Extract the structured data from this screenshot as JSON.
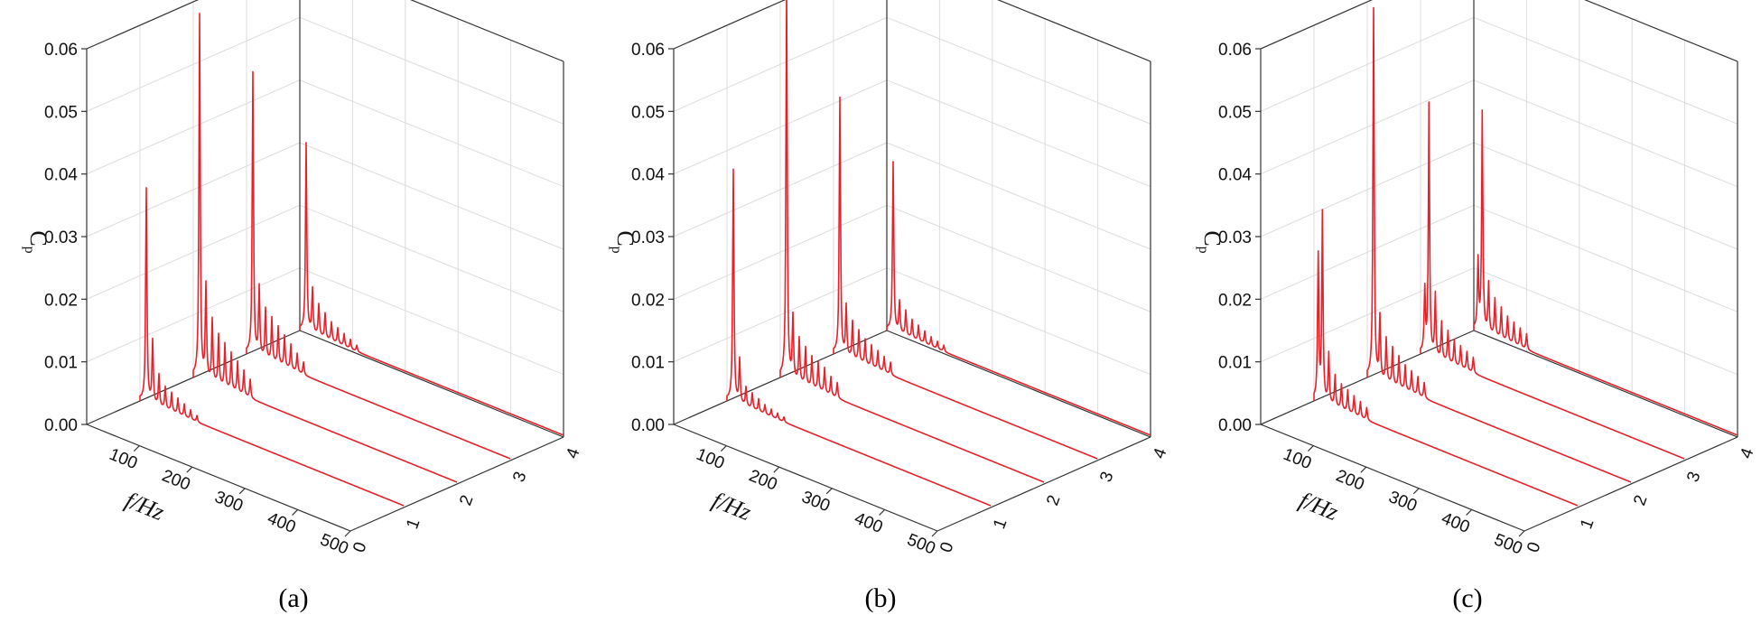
{
  "chart_data": [
    {
      "type": "line",
      "caption": "(a)",
      "zlabel": "C",
      "zlabel_sub": "p",
      "xlabel": "f/Hz",
      "xticks": [
        "100",
        "200",
        "300",
        "400",
        "500"
      ],
      "yticks": [
        "0",
        "1",
        "2",
        "3",
        "4"
      ],
      "zticks": [
        "0.00",
        "0.01",
        "0.02",
        "0.03",
        "0.04",
        "0.05",
        "0.06"
      ],
      "xlim": [
        0,
        500
      ],
      "ylim": [
        0,
        4
      ],
      "zlim": [
        0,
        0.06
      ],
      "series": [
        {
          "y": 1,
          "peaks": [
            [
              12,
              0.034
            ],
            [
              24,
              0.01
            ],
            [
              36,
              0.005
            ],
            [
              48,
              0.0035
            ],
            [
              60,
              0.003
            ],
            [
              72,
              0.0025
            ],
            [
              84,
              0.002
            ],
            [
              96,
              0.0015
            ],
            [
              108,
              0.001
            ]
          ]
        },
        {
          "y": 2,
          "peaks": [
            [
              12,
              0.058
            ],
            [
              24,
              0.015
            ],
            [
              36,
              0.01
            ],
            [
              48,
              0.008
            ],
            [
              60,
              0.007
            ],
            [
              72,
              0.006
            ],
            [
              84,
              0.005
            ],
            [
              96,
              0.004
            ],
            [
              108,
              0.003
            ]
          ]
        },
        {
          "y": 3,
          "peaks": [
            [
              12,
              0.045
            ],
            [
              24,
              0.011
            ],
            [
              36,
              0.008
            ],
            [
              48,
              0.007
            ],
            [
              60,
              0.006
            ],
            [
              72,
              0.005
            ],
            [
              84,
              0.004
            ],
            [
              96,
              0.003
            ],
            [
              108,
              0.002
            ]
          ]
        },
        {
          "y": 4,
          "peaks": [
            [
              12,
              0.03
            ],
            [
              24,
              0.007
            ],
            [
              36,
              0.005
            ],
            [
              48,
              0.004
            ],
            [
              60,
              0.003
            ],
            [
              72,
              0.0025
            ],
            [
              84,
              0.002
            ],
            [
              96,
              0.0015
            ],
            [
              108,
              0.001
            ]
          ]
        }
      ]
    },
    {
      "type": "line",
      "caption": "(b)",
      "zlabel": "C",
      "zlabel_sub": "p",
      "xlabel": "f/Hz",
      "xticks": [
        "100",
        "200",
        "300",
        "400",
        "500"
      ],
      "yticks": [
        "0",
        "1",
        "2",
        "3",
        "4"
      ],
      "zticks": [
        "0.00",
        "0.01",
        "0.02",
        "0.03",
        "0.04",
        "0.05",
        "0.06"
      ],
      "xlim": [
        0,
        500
      ],
      "ylim": [
        0,
        4
      ],
      "zlim": [
        0,
        0.06
      ],
      "series": [
        {
          "y": 1,
          "peaks": [
            [
              12,
              0.037
            ],
            [
              24,
              0.007
            ],
            [
              36,
              0.003
            ],
            [
              48,
              0.0025
            ],
            [
              60,
              0.002
            ],
            [
              72,
              0.0015
            ],
            [
              84,
              0.0012
            ],
            [
              96,
              0.001
            ],
            [
              108,
              0.0008
            ]
          ]
        },
        {
          "y": 2,
          "peaks": [
            [
              12,
              0.063
            ],
            [
              24,
              0.01
            ],
            [
              36,
              0.007
            ],
            [
              48,
              0.006
            ],
            [
              60,
              0.005
            ],
            [
              72,
              0.0045
            ],
            [
              84,
              0.004
            ],
            [
              96,
              0.003
            ],
            [
              108,
              0.0025
            ]
          ]
        },
        {
          "y": 3,
          "peaks": [
            [
              12,
              0.041
            ],
            [
              24,
              0.008
            ],
            [
              36,
              0.006
            ],
            [
              48,
              0.005
            ],
            [
              60,
              0.004
            ],
            [
              72,
              0.0035
            ],
            [
              84,
              0.003
            ],
            [
              96,
              0.0025
            ],
            [
              108,
              0.002
            ]
          ]
        },
        {
          "y": 4,
          "peaks": [
            [
              12,
              0.027
            ],
            [
              24,
              0.005
            ],
            [
              36,
              0.004
            ],
            [
              48,
              0.003
            ],
            [
              60,
              0.0025
            ],
            [
              72,
              0.002
            ],
            [
              84,
              0.0015
            ],
            [
              96,
              0.0012
            ],
            [
              108,
              0.001
            ]
          ]
        }
      ]
    },
    {
      "type": "line",
      "caption": "(c)",
      "zlabel": "C",
      "zlabel_sub": "p",
      "xlabel": "f/Hz",
      "xticks": [
        "100",
        "200",
        "300",
        "400",
        "500"
      ],
      "yticks": [
        "0",
        "1",
        "2",
        "3",
        "4"
      ],
      "zticks": [
        "0.00",
        "0.01",
        "0.02",
        "0.03",
        "0.04",
        "0.05",
        "0.06"
      ],
      "xlim": [
        0,
        500
      ],
      "ylim": [
        0,
        4
      ],
      "zlim": [
        0,
        0.06
      ],
      "series": [
        {
          "y": 1,
          "peaks": [
            [
              8,
              0.023
            ],
            [
              16,
              0.03
            ],
            [
              28,
              0.008
            ],
            [
              40,
              0.005
            ],
            [
              52,
              0.004
            ],
            [
              64,
              0.0035
            ],
            [
              76,
              0.003
            ],
            [
              88,
              0.0025
            ],
            [
              100,
              0.002
            ]
          ]
        },
        {
          "y": 2,
          "peaks": [
            [
              12,
              0.059
            ],
            [
              24,
              0.01
            ],
            [
              36,
              0.007
            ],
            [
              48,
              0.006
            ],
            [
              60,
              0.005
            ],
            [
              72,
              0.004
            ],
            [
              84,
              0.0035
            ],
            [
              96,
              0.003
            ],
            [
              108,
              0.0025
            ]
          ]
        },
        {
          "y": 3,
          "peaks": [
            [
              8,
              0.01
            ],
            [
              16,
              0.04
            ],
            [
              28,
              0.01
            ],
            [
              40,
              0.006
            ],
            [
              52,
              0.005
            ],
            [
              64,
              0.004
            ],
            [
              76,
              0.0035
            ],
            [
              88,
              0.003
            ],
            [
              100,
              0.0025
            ]
          ]
        },
        {
          "y": 4,
          "peaks": [
            [
              8,
              0.011
            ],
            [
              16,
              0.035
            ],
            [
              28,
              0.008
            ],
            [
              40,
              0.006
            ],
            [
              52,
              0.005
            ],
            [
              64,
              0.004
            ],
            [
              76,
              0.0035
            ],
            [
              88,
              0.003
            ],
            [
              100,
              0.0025
            ]
          ]
        }
      ]
    }
  ]
}
